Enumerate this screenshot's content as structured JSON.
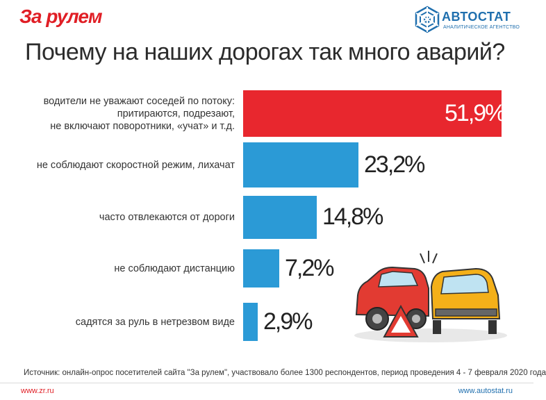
{
  "header": {
    "logo_left": "За рулем",
    "logo_right_brand": "АВТОСТАТ",
    "logo_right_sub": "АНАЛИТИЧЕСКОЕ АГЕНТСТВО"
  },
  "title": "Почему на наших дорогах так много аварий?",
  "chart_data": {
    "type": "bar",
    "orientation": "horizontal",
    "title": "Почему на наших дорогах так много аварий?",
    "xlabel": "",
    "ylabel": "",
    "xlim": [
      0,
      51.9
    ],
    "categories": [
      [
        "водители не уважают соседей по потоку:",
        "притираются, подрезают,",
        "не включают поворотники, «учат» и т.д."
      ],
      [
        "не соблюдают скоростной режим, лихачат"
      ],
      [
        "часто отвлекаются от дороги"
      ],
      [
        "не соблюдают дистанцию"
      ],
      [
        "садятся за руль в нетрезвом виде"
      ]
    ],
    "values": [
      51.9,
      23.2,
      14.8,
      7.2,
      2.9
    ],
    "value_labels": [
      "51,9%",
      "23,2%",
      "14,8%",
      "7,2%",
      "2,9%"
    ],
    "colors": [
      "#e8272e",
      "#2b9ad6",
      "#2b9ad6",
      "#2b9ad6",
      "#2b9ad6"
    ]
  },
  "footer": {
    "source": "Источник: онлайн-опрос посетителей сайта \"За рулем\", участвовало более 1300 респондентов, период проведения 4 - 7 февраля 2020 года",
    "url_left": "www.zr.ru",
    "url_right": "www.autostat.ru"
  }
}
